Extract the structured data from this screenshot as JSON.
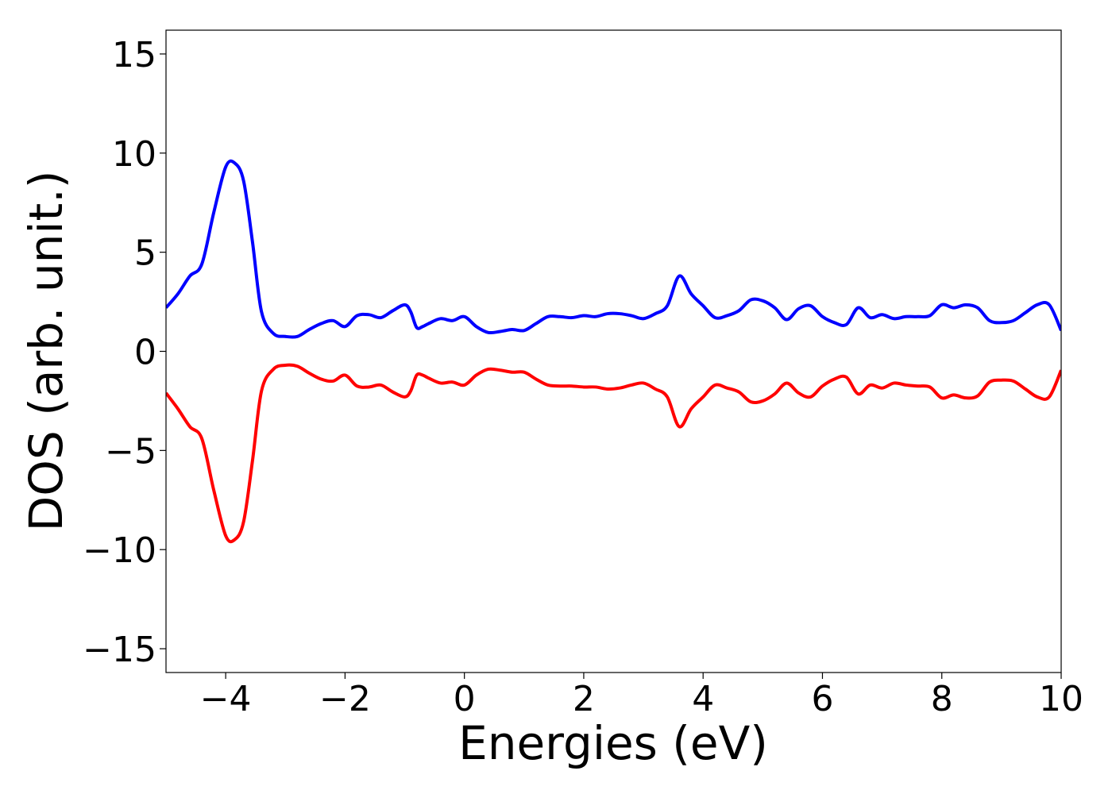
{
  "chart_data": {
    "type": "line",
    "title": "",
    "xlabel": "Energies (eV)",
    "ylabel": "DOS (arb. unit.)",
    "xlim": [
      -5,
      10
    ],
    "ylim": [
      -16.2,
      16.2
    ],
    "grid": false,
    "legend": "none",
    "xticks": [
      -4,
      -2,
      0,
      2,
      4,
      6,
      8,
      10
    ],
    "xtick_labels": [
      "−4",
      "−2",
      "0",
      "2",
      "4",
      "6",
      "8",
      "10"
    ],
    "yticks": [
      -15,
      -10,
      -5,
      0,
      5,
      10,
      15
    ],
    "ytick_labels": [
      "−15",
      "−10",
      "−5",
      "0",
      "5",
      "10",
      "15"
    ],
    "x": [
      -5.0,
      -4.8,
      -4.6,
      -4.4,
      -4.2,
      -4.0,
      -3.85,
      -3.7,
      -3.55,
      -3.4,
      -3.2,
      -3.0,
      -2.8,
      -2.6,
      -2.4,
      -2.2,
      -2.0,
      -1.8,
      -1.6,
      -1.4,
      -1.2,
      -1.0,
      -0.9,
      -0.8,
      -0.7,
      -0.6,
      -0.4,
      -0.2,
      0.0,
      0.2,
      0.4,
      0.6,
      0.8,
      1.0,
      1.2,
      1.4,
      1.6,
      1.8,
      2.0,
      2.2,
      2.4,
      2.6,
      2.8,
      3.0,
      3.2,
      3.4,
      3.6,
      3.8,
      4.0,
      4.2,
      4.4,
      4.6,
      4.8,
      5.0,
      5.2,
      5.4,
      5.6,
      5.8,
      6.0,
      6.2,
      6.4,
      6.6,
      6.8,
      7.0,
      7.2,
      7.4,
      7.6,
      7.8,
      8.0,
      8.2,
      8.4,
      8.6,
      8.8,
      9.0,
      9.2,
      9.4,
      9.6,
      9.8,
      10.0
    ],
    "series": [
      {
        "color": "#0000ff",
        "values": [
          2.2,
          2.9,
          3.8,
          4.4,
          7.0,
          9.3,
          9.5,
          8.6,
          5.5,
          2.0,
          0.9,
          0.75,
          0.75,
          1.1,
          1.4,
          1.55,
          1.25,
          1.8,
          1.85,
          1.7,
          2.05,
          2.35,
          2.0,
          1.2,
          1.25,
          1.4,
          1.65,
          1.55,
          1.75,
          1.25,
          0.95,
          1.0,
          1.1,
          1.05,
          1.4,
          1.75,
          1.75,
          1.7,
          1.8,
          1.75,
          1.9,
          1.9,
          1.8,
          1.65,
          1.9,
          2.3,
          3.8,
          2.9,
          2.3,
          1.7,
          1.8,
          2.05,
          2.6,
          2.55,
          2.2,
          1.6,
          2.15,
          2.3,
          1.75,
          1.45,
          1.35,
          2.2,
          1.7,
          1.85,
          1.65,
          1.75,
          1.75,
          1.8,
          2.35,
          2.2,
          2.35,
          2.2,
          1.55,
          1.45,
          1.55,
          1.95,
          2.35,
          2.35,
          1.05
        ]
      },
      {
        "color": "#ff0000",
        "values": [
          -2.1,
          -2.9,
          -3.8,
          -4.4,
          -7.0,
          -9.3,
          -9.5,
          -8.6,
          -5.5,
          -2.0,
          -0.9,
          -0.7,
          -0.75,
          -1.1,
          -1.4,
          -1.5,
          -1.2,
          -1.75,
          -1.8,
          -1.7,
          -2.05,
          -2.3,
          -2.0,
          -1.2,
          -1.2,
          -1.35,
          -1.6,
          -1.55,
          -1.7,
          -1.2,
          -0.9,
          -0.95,
          -1.05,
          -1.05,
          -1.4,
          -1.7,
          -1.75,
          -1.75,
          -1.8,
          -1.8,
          -1.9,
          -1.85,
          -1.7,
          -1.6,
          -1.9,
          -2.3,
          -3.8,
          -2.9,
          -2.3,
          -1.7,
          -1.85,
          -2.05,
          -2.55,
          -2.5,
          -2.15,
          -1.6,
          -2.1,
          -2.3,
          -1.75,
          -1.4,
          -1.3,
          -2.15,
          -1.7,
          -1.85,
          -1.6,
          -1.7,
          -1.75,
          -1.8,
          -2.35,
          -2.2,
          -2.35,
          -2.25,
          -1.55,
          -1.45,
          -1.5,
          -1.9,
          -2.3,
          -2.3,
          -0.95
        ]
      }
    ]
  }
}
